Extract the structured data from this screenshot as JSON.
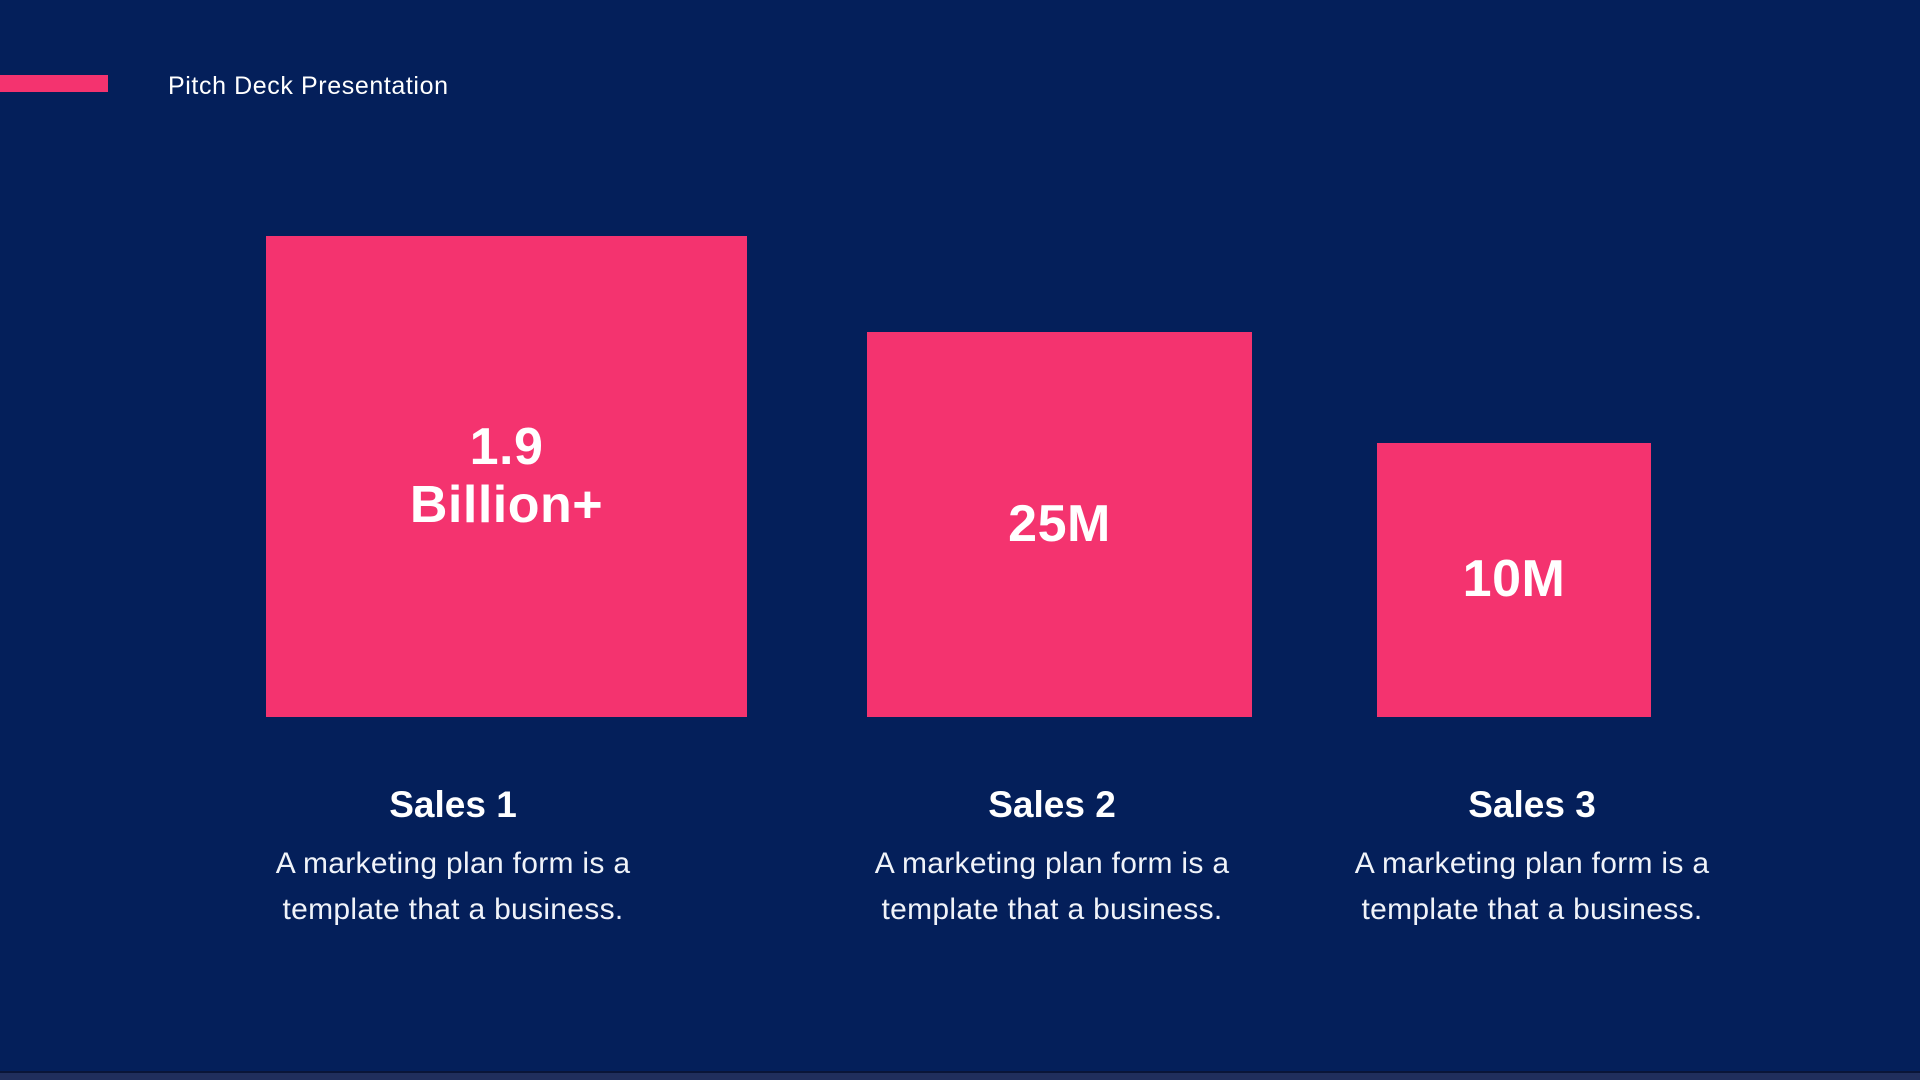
{
  "colors": {
    "background": "#041F5A",
    "accent": "#F4336F",
    "text": "#FFFFFF",
    "bottom_strip": "#202E5C",
    "bottom_line": "#0A1538"
  },
  "header": {
    "title": "Pitch Deck Presentation"
  },
  "columns": [
    {
      "value": "1.9\nBillion+",
      "label": "Sales 1",
      "description": "A marketing plan form is a\ntemplate that a business."
    },
    {
      "value": "25M",
      "label": "Sales 2",
      "description": "A marketing plan form is a\ntemplate that a business."
    },
    {
      "value": "10M",
      "label": "Sales 3",
      "description": "A marketing plan form is a\ntemplate that a business."
    }
  ],
  "chart_data": {
    "type": "bar",
    "subtype": "proportional-squares-bottom-aligned",
    "title": "Pitch Deck Presentation",
    "categories": [
      "Sales 1",
      "Sales 2",
      "Sales 3"
    ],
    "values": [
      1900000000,
      25000000,
      10000000
    ],
    "value_labels": [
      "1.9 Billion+",
      "25M",
      "10M"
    ],
    "annotations": [
      "A marketing plan form is a template that a business.",
      "A marketing plan form is a template that a business.",
      "A marketing plan form is a template that a business."
    ],
    "legend": false,
    "grid": false,
    "xlabel": "",
    "ylabel": ""
  }
}
